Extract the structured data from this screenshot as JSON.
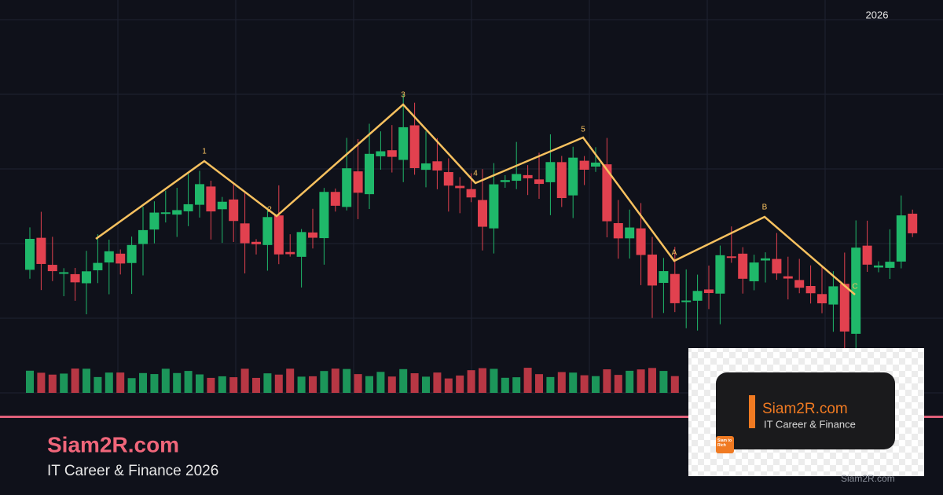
{
  "header": {
    "year": "2026"
  },
  "waves": {
    "labels": [
      "1",
      "2",
      "3",
      "4",
      "5",
      "A",
      "B",
      "C"
    ]
  },
  "brand": {
    "title": "Siam2R.com",
    "subtitle": "IT Career & Finance 2026"
  },
  "logo": {
    "title": "Siam2R.com",
    "tagline": "IT Career & Finance",
    "badge": "Siam to Rich"
  },
  "watermark": "Siam2R.com"
}
